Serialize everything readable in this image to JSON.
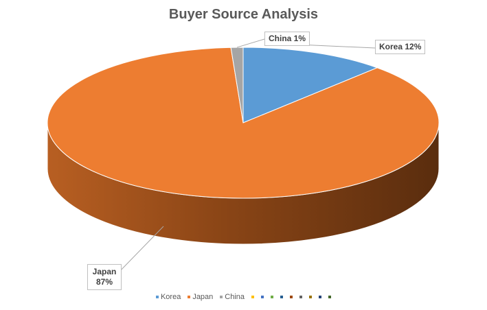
{
  "chart_data": {
    "type": "pie",
    "style": "3d",
    "title": "Buyer Source Analysis",
    "slices": [
      {
        "name": "Korea",
        "value": 12,
        "label": "Korea 12%",
        "color": "#5b9bd5"
      },
      {
        "name": "Japan",
        "value": 87,
        "label_name": "Japan",
        "label_value": "87%",
        "color": "#ed7d31"
      },
      {
        "name": "China",
        "value": 1,
        "label": "China 1%",
        "color": "#a5a5a5"
      }
    ],
    "legend": {
      "position": "bottom",
      "entries": [
        {
          "name": "Korea",
          "color": "#5b9bd5"
        },
        {
          "name": "Japan",
          "color": "#ed7d31"
        },
        {
          "name": "China",
          "color": "#a5a5a5"
        },
        {
          "name": "",
          "color": "#ffc000"
        },
        {
          "name": "",
          "color": "#4472c4"
        },
        {
          "name": "",
          "color": "#70ad47"
        },
        {
          "name": "",
          "color": "#255e91"
        },
        {
          "name": "",
          "color": "#9e480e"
        },
        {
          "name": "",
          "color": "#636363"
        },
        {
          "name": "",
          "color": "#997300"
        },
        {
          "name": "",
          "color": "#264478"
        },
        {
          "name": "",
          "color": "#43682b"
        }
      ]
    }
  }
}
